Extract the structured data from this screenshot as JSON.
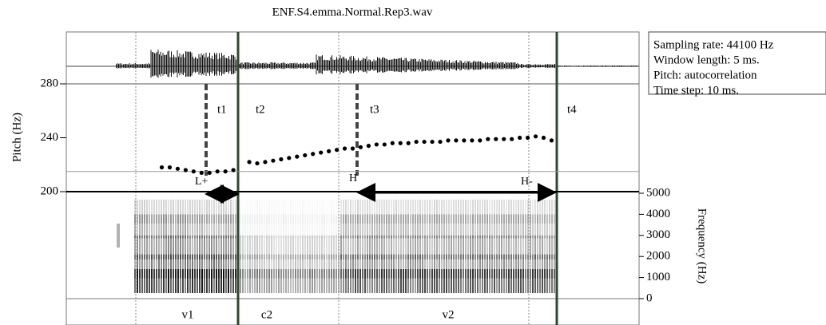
{
  "chart_data": {
    "type": "scatter",
    "title": "ENF.S4.emma.Normal.Rep3.wav",
    "ylabel": "Pitch (Hz)",
    "y2label": "Frequency (Hz)",
    "ylim": [
      200,
      280
    ],
    "yticks": [
      200,
      240,
      280
    ],
    "y2lim": [
      0,
      5000
    ],
    "y2ticks": [
      0,
      1000,
      2000,
      3000,
      4000,
      5000
    ],
    "xlim": [
      0,
      0.72
    ],
    "reference_line": 215,
    "info": [
      "Sampling rate: 44100 Hz",
      "Window length: 5 ms.",
      "Pitch: autocorrelation",
      "Time step: 10 ms."
    ],
    "intervals": [
      "t1",
      "t2",
      "t3",
      "t4"
    ],
    "tones": [
      "L+",
      "H",
      "H-"
    ],
    "segments": [
      "v1",
      "c2",
      "v2"
    ],
    "series": [
      {
        "color": "#000000",
        "x": [
          0.12,
          0.13,
          0.14,
          0.15,
          0.16,
          0.17,
          0.18,
          0.19,
          0.2,
          0.21
        ],
        "values": [
          218,
          218,
          217,
          216,
          215,
          214,
          214,
          215,
          215,
          216
        ]
      },
      {
        "color": "#000000",
        "x": [
          0.23,
          0.24,
          0.25,
          0.26,
          0.27,
          0.28,
          0.29,
          0.3,
          0.31,
          0.32,
          0.33,
          0.34,
          0.35,
          0.36,
          0.37,
          0.38,
          0.39,
          0.4,
          0.41,
          0.42,
          0.43,
          0.44,
          0.45,
          0.46,
          0.47,
          0.48,
          0.49,
          0.5,
          0.51,
          0.52,
          0.53,
          0.54,
          0.55,
          0.56,
          0.57,
          0.58,
          0.59,
          0.6,
          0.61
        ],
        "values": [
          222,
          221,
          222,
          223,
          224,
          225,
          226,
          227,
          228,
          229,
          230,
          231,
          232,
          232,
          233,
          234,
          235,
          235,
          236,
          236,
          236,
          237,
          237,
          237,
          237,
          238,
          238,
          238,
          238,
          238,
          239,
          239,
          239,
          239,
          240,
          240,
          241,
          240,
          238
        ]
      }
    ]
  }
}
